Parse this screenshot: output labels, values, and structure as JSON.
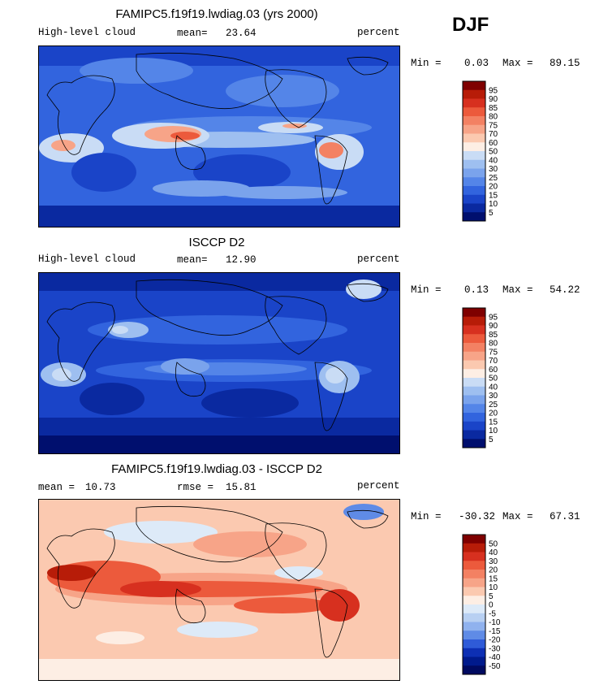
{
  "season": "DJF",
  "chart_data": [
    {
      "type": "heatmap",
      "title": "FAMIPC5.f19f19.lwdiag.03 (yrs 2000)",
      "variable": "High-level cloud",
      "stat1_label": "mean=",
      "stat1_value": "23.64",
      "units": "percent",
      "min_label": "Min =",
      "min": "0.03",
      "max_label": "Max =",
      "max": "89.15",
      "colorbar_levels": [
        "95",
        "90",
        "85",
        "80",
        "75",
        "70",
        "60",
        "50",
        "40",
        "30",
        "25",
        "20",
        "15",
        "10",
        "5"
      ],
      "colors": [
        "#7f0000",
        "#b71c08",
        "#d7301f",
        "#ec5a3c",
        "#f38163",
        "#f7a488",
        "#fbc9b0",
        "#fdeee4",
        "#c9dcf5",
        "#9ebff0",
        "#7aa3ec",
        "#5485e8",
        "#3264de",
        "#1a44c8",
        "#0a29a0",
        "#000f6e"
      ],
      "mean_value": 23.64,
      "min_value": 0.03,
      "max_value": 89.15
    },
    {
      "type": "heatmap",
      "title": "ISCCP D2",
      "variable": "High-level cloud",
      "stat1_label": "mean=",
      "stat1_value": "12.90",
      "units": "percent",
      "min_label": "Min =",
      "min": "0.13",
      "max_label": "Max =",
      "max": "54.22",
      "colorbar_levels": [
        "95",
        "90",
        "85",
        "80",
        "75",
        "70",
        "60",
        "50",
        "40",
        "30",
        "25",
        "20",
        "15",
        "10",
        "5"
      ],
      "colors": [
        "#7f0000",
        "#b71c08",
        "#d7301f",
        "#ec5a3c",
        "#f38163",
        "#f7a488",
        "#fbc9b0",
        "#fdeee4",
        "#c9dcf5",
        "#9ebff0",
        "#7aa3ec",
        "#5485e8",
        "#3264de",
        "#1a44c8",
        "#0a29a0",
        "#000f6e"
      ],
      "mean_value": 12.9,
      "min_value": 0.13,
      "max_value": 54.22
    },
    {
      "type": "heatmap",
      "title": "FAMIPC5.f19f19.lwdiag.03 - ISCCP D2",
      "stat1_label": "mean =",
      "stat1_value": "10.73",
      "stat2_label": "rmse =",
      "stat2_value": "15.81",
      "units": "percent",
      "min_label": "Min =",
      "min": "-30.32",
      "max_label": "Max =",
      "max": "67.31",
      "colorbar_levels": [
        "50",
        "40",
        "30",
        "20",
        "15",
        "10",
        "5",
        "0",
        "-5",
        "-10",
        "-15",
        "-20",
        "-30",
        "-40",
        "-50"
      ],
      "colors": [
        "#7f0000",
        "#b71c08",
        "#d7301f",
        "#ec5a3c",
        "#f38163",
        "#f7a488",
        "#fbc9b0",
        "#fdeee4",
        "#ddeaf8",
        "#b8d0f2",
        "#90b2ee",
        "#5f8be6",
        "#2f5bd8",
        "#0d2fb4",
        "#001a8c",
        "#000a60"
      ],
      "mean_value": 10.73,
      "rmse_value": 15.81,
      "min_value": -30.32,
      "max_value": 67.31
    }
  ]
}
